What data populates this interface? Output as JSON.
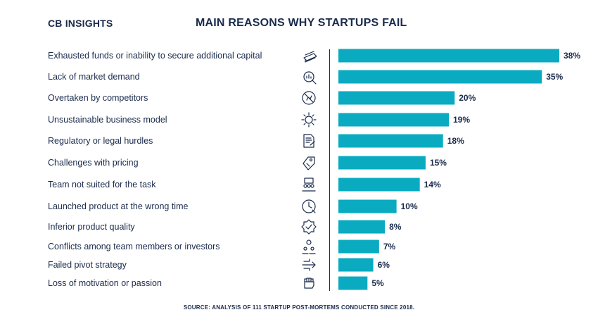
{
  "header": {
    "brand": "CB INSIGHTS",
    "title": "MAIN REASONS WHY STARTUPS FAIL"
  },
  "chart_data": {
    "type": "bar",
    "orientation": "horizontal",
    "title": "MAIN REASONS WHY STARTUPS FAIL",
    "categories": [
      "Exhausted funds or inability to secure additional capital",
      "Lack of market demand",
      "Overtaken by competitors",
      "Unsustainable business model",
      "Regulatory or legal hurdles",
      "Challenges with pricing",
      "Team not suited for the task",
      "Launched product at the wrong time",
      "Inferior product quality",
      "Conflicts among team members or investors",
      "Failed pivot strategy",
      "Loss of motivation or passion"
    ],
    "values": [
      38,
      35,
      20,
      19,
      18,
      15,
      14,
      10,
      8,
      7,
      6,
      5
    ],
    "value_labels": [
      "38%",
      "35%",
      "20%",
      "19%",
      "18%",
      "15%",
      "14%",
      "10%",
      "8%",
      "7%",
      "6%",
      "5%"
    ],
    "icons": [
      "money-stack-icon",
      "magnifier-chart-icon",
      "no-competitor-icon",
      "gear-network-icon",
      "legal-document-icon",
      "price-tag-icon",
      "team-meeting-icon",
      "clock-warning-icon",
      "quality-badge-icon",
      "team-conflict-icon",
      "pivot-arrows-icon",
      "fist-icon"
    ],
    "xlim": [
      0,
      38
    ],
    "bar_color": "#0aabc1",
    "grid": false
  },
  "footer": {
    "source": "SOURCE: ANALYSIS OF 111 STARTUP POST-MORTEMS CONDUCTED SINCE 2018."
  },
  "colors": {
    "text": "#1a2b4c",
    "bar": "#0aabc1"
  }
}
